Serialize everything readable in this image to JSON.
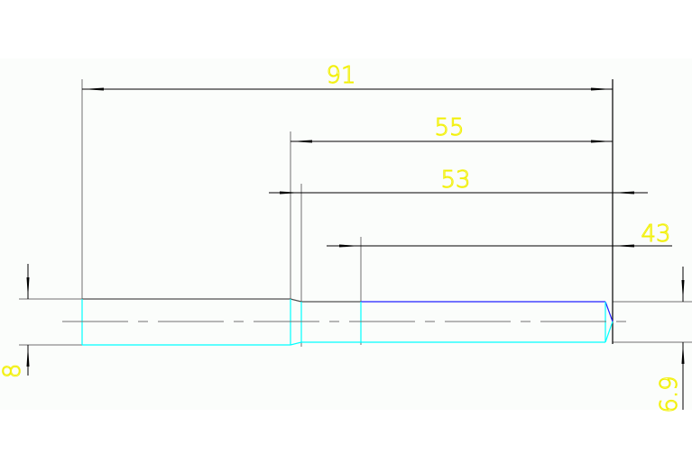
{
  "drawing": {
    "dimensions": {
      "overall_length": "91",
      "step_length": "55",
      "reduced_length": "53",
      "end_length": "43",
      "left_diameter": "8",
      "right_diameter": "6.9"
    },
    "colors": {
      "background": "#fbfdfb",
      "dimension_line": "#000000",
      "extension_line": "#707070",
      "outline_cyan": "#00ffff",
      "outline_blue": "#2020ff",
      "dimension_text": "#f2f000"
    }
  }
}
